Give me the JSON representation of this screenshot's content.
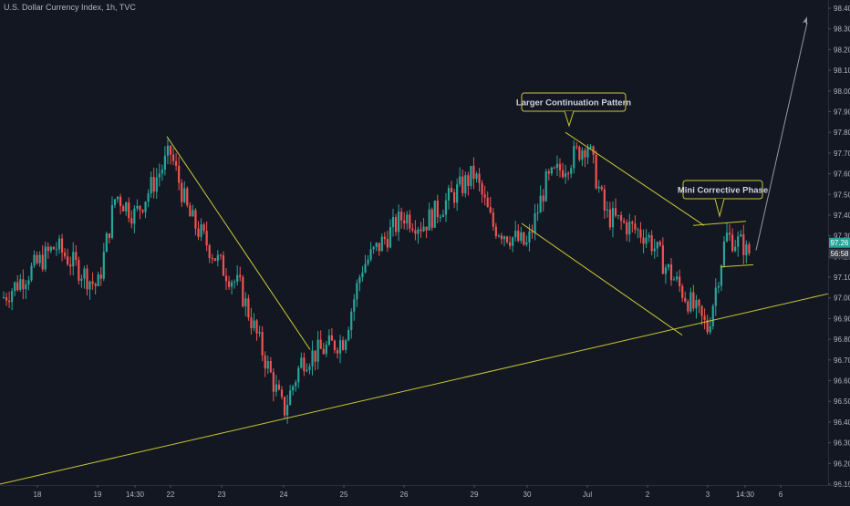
{
  "header": {
    "symbol_title": "U.S. Dollar Currency Index, 1h, TVC"
  },
  "colors": {
    "background": "#131722",
    "bull": "#26a69a",
    "bear": "#ef5350",
    "trendline": "#c8c832",
    "arrow": "#9598a1",
    "axis_text": "#b2b5be",
    "price_tag": "#26a69a",
    "time_tag": "#363a45"
  },
  "chart_data": {
    "type": "candlestick",
    "title": "U.S. Dollar Currency Index, 1h, TVC",
    "ylim": [
      96.1,
      98.4
    ],
    "y_ticks": [
      "98.40",
      "98.30",
      "98.20",
      "98.10",
      "98.00",
      "97.90",
      "97.80",
      "97.70",
      "97.60",
      "97.50",
      "97.40",
      "97.30",
      "97.20",
      "97.10",
      "97.00",
      "96.90",
      "96.80",
      "96.70",
      "96.60",
      "96.50",
      "96.40",
      "96.30",
      "96.20",
      "96.10"
    ],
    "x_ticks": [
      "18",
      "19",
      "14:30",
      "22",
      "23",
      "24",
      "25",
      "26",
      "29",
      "30",
      "Jul",
      "2",
      "3",
      "14:30",
      "6"
    ],
    "current_price": {
      "value": 97.26,
      "label": "97.26",
      "countdown": "56:58"
    },
    "ohlc_path": [
      [
        "18",
        97.0
      ],
      [
        "18",
        97.25
      ],
      [
        "19",
        97.05
      ],
      [
        "19",
        97.5
      ],
      [
        "14:30",
        97.4
      ],
      [
        "14:30",
        97.25
      ],
      [
        "22",
        97.7
      ],
      [
        "22",
        97.4
      ],
      [
        "23",
        97.15
      ],
      [
        "23",
        97.05
      ],
      [
        "24",
        96.45
      ],
      [
        "24",
        96.7
      ],
      [
        "25",
        96.8
      ],
      [
        "25",
        97.15
      ],
      [
        "26",
        97.4
      ],
      [
        "26",
        97.35
      ],
      [
        "29",
        97.6
      ],
      [
        "29",
        97.35
      ],
      [
        "30",
        97.25
      ],
      [
        "30",
        97.55
      ],
      [
        "Jul",
        97.75
      ],
      [
        "Jul",
        97.4
      ],
      [
        "2",
        97.3
      ],
      [
        "2",
        97.15
      ],
      [
        "3",
        96.85
      ],
      [
        "3",
        97.3
      ],
      [
        "14:30",
        97.22
      ],
      [
        "14:30",
        97.26
      ]
    ],
    "annotations": [
      {
        "text": "Larger Continuation Pattern"
      },
      {
        "text": "Mini Corrective Phase"
      }
    ]
  }
}
